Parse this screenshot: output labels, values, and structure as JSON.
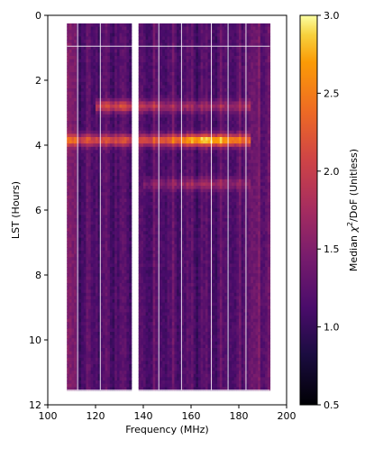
{
  "chart_data": {
    "type": "heatmap",
    "xlabel": "Frequency (MHz)",
    "ylabel": "LST (Hours)",
    "xlim": [
      100,
      200
    ],
    "ylim": [
      12,
      0
    ],
    "x_ticks": [
      "100",
      "120",
      "140",
      "160",
      "180",
      "200"
    ],
    "y_ticks": [
      "0",
      "2",
      "4",
      "6",
      "8",
      "10",
      "12"
    ],
    "colorbar": {
      "label_main": "Median ",
      "label_chi": "χ",
      "label_sup": "2",
      "label_rest": "/DoF (Unitless)",
      "range": [
        0.5,
        3.0
      ],
      "ticks": [
        "0.5",
        "1.0",
        "1.5",
        "2.0",
        "2.5",
        "3.0"
      ],
      "colormap": "inferno"
    },
    "data_extent": {
      "freq_min_mhz": 108,
      "freq_max_mhz": 193,
      "lst_min_hours": 0.25,
      "lst_max_hours": 11.55
    },
    "flagged_channels_mhz": [
      112.5,
      122.0,
      137.0,
      146.5,
      156.0,
      168.5,
      175.5,
      183.0
    ],
    "flagged_band_mhz": [
      135.3,
      138.2
    ],
    "flagged_lst_hours": [
      0.95,
      11.55
    ],
    "features": [
      {
        "lst_hours": 3.85,
        "freq_range_mhz": [
          108,
          185
        ],
        "peak_freq_mhz": 167,
        "peak_value": 2.9
      },
      {
        "lst_hours": 2.8,
        "freq_range_mhz": [
          120,
          185
        ],
        "peak_freq_mhz": 130,
        "peak_value": 2.05
      },
      {
        "lst_hours": 5.2,
        "freq_range_mhz": [
          140,
          185
        ],
        "peak_freq_mhz": 165,
        "peak_value": 1.7
      }
    ],
    "baseline_value": 1.15
  }
}
